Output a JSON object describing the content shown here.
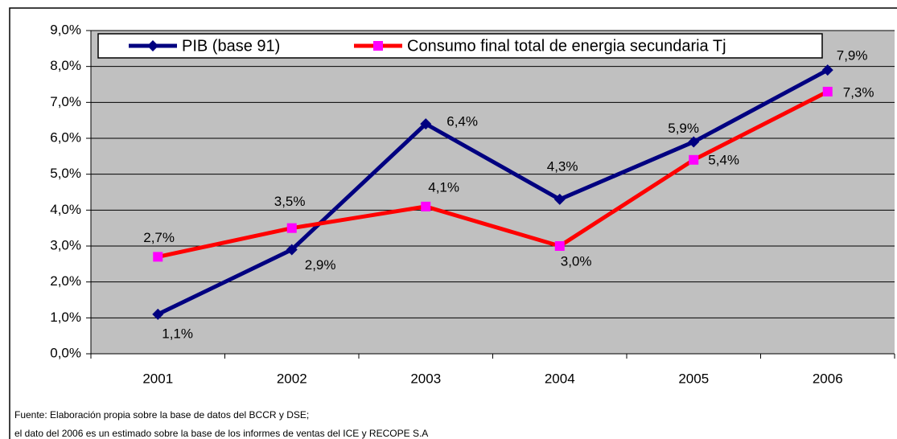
{
  "chart_data": {
    "type": "line",
    "categories": [
      "2001",
      "2002",
      "2003",
      "2004",
      "2005",
      "2006"
    ],
    "series": [
      {
        "name": "PIB (base 91)",
        "color": "#000080",
        "marker": "diamond",
        "marker_color": "#000080",
        "values": [
          1.1,
          2.9,
          6.4,
          4.3,
          5.9,
          7.9
        ],
        "value_labels": [
          "1,1%",
          "2,9%",
          "6,4%",
          "4,3%",
          "5,9%",
          "7,9%"
        ]
      },
      {
        "name": "Consumo final total de energia secundaria Tj",
        "color": "#ff0000",
        "marker": "square",
        "marker_color": "#ff00ff",
        "values": [
          2.7,
          3.5,
          4.1,
          3.0,
          5.4,
          7.3
        ],
        "value_labels": [
          "2,7%",
          "3,5%",
          "4,1%",
          "3,0%",
          "5,4%",
          "7,3%"
        ]
      }
    ],
    "ylim": [
      0,
      9
    ],
    "yticks": [
      {
        "value": 0,
        "label": "0,0%"
      },
      {
        "value": 1,
        "label": "1,0%"
      },
      {
        "value": 2,
        "label": "2,0%"
      },
      {
        "value": 3,
        "label": "3,0%"
      },
      {
        "value": 4,
        "label": "4,0%"
      },
      {
        "value": 5,
        "label": "5,0%"
      },
      {
        "value": 6,
        "label": "6,0%"
      },
      {
        "value": 7,
        "label": "7,0%"
      },
      {
        "value": 8,
        "label": "8,0%"
      },
      {
        "value": 9,
        "label": "9,0%"
      }
    ],
    "grid": true,
    "legend": "top",
    "notes": [
      "Fuente: Elaboración propia sobre la base de datos del BCCR y DSE;",
      "el dato del 2006 es un estimado sobre la base de los informes de ventas del ICE y RECOPE S.A"
    ]
  }
}
